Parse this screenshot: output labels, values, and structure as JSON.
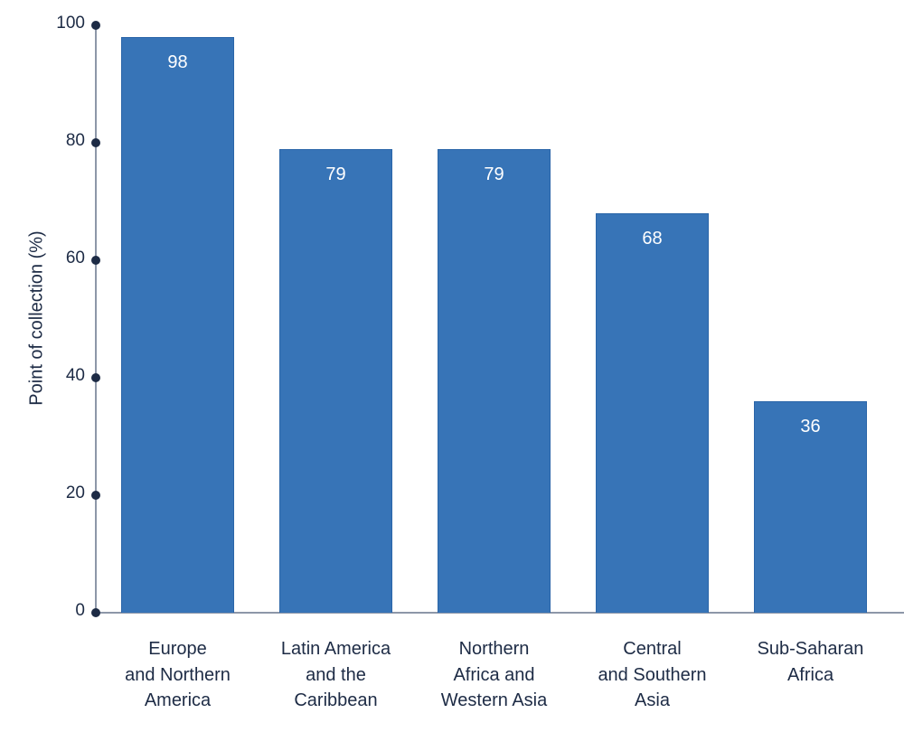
{
  "chart_data": {
    "type": "bar",
    "title": "",
    "xlabel": "",
    "ylabel": "Point of collection (%)",
    "ylim": [
      0,
      100
    ],
    "yticks": [
      0,
      20,
      40,
      60,
      80,
      100
    ],
    "grid": false,
    "categories": [
      "Europe\nand Northern\nAmerica",
      "Latin America\nand the\nCaribbean",
      "Northern\nAfrica and\nWestern Asia",
      "Central\nand Southern\nAsia",
      "Sub-Saharan\nAfrica"
    ],
    "values": [
      98,
      79,
      79,
      68,
      36
    ],
    "value_labels": [
      "98",
      "79",
      "79",
      "68",
      "36"
    ],
    "bar_color": "#3774b7"
  }
}
